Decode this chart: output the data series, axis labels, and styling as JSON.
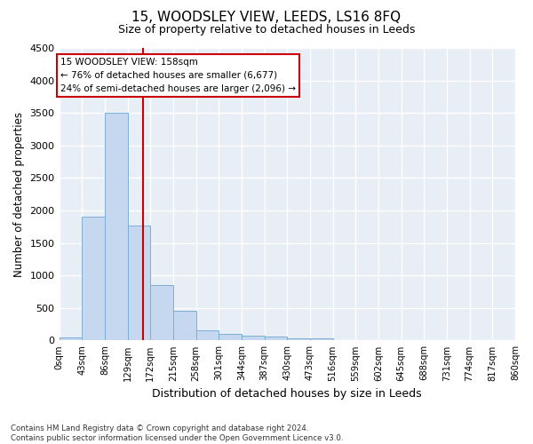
{
  "title": "15, WOODSLEY VIEW, LEEDS, LS16 8FQ",
  "subtitle": "Size of property relative to detached houses in Leeds",
  "xlabel": "Distribution of detached houses by size in Leeds",
  "ylabel": "Number of detached properties",
  "bin_labels": [
    "0sqm",
    "43sqm",
    "86sqm",
    "129sqm",
    "172sqm",
    "215sqm",
    "258sqm",
    "301sqm",
    "344sqm",
    "387sqm",
    "430sqm",
    "473sqm",
    "516sqm",
    "559sqm",
    "602sqm",
    "645sqm",
    "688sqm",
    "731sqm",
    "774sqm",
    "817sqm",
    "860sqm"
  ],
  "bin_edges_sqm": [
    0,
    43,
    86,
    129,
    172,
    215,
    258,
    301,
    344,
    387,
    430,
    473,
    516,
    559,
    602,
    645,
    688,
    731,
    774,
    817,
    860
  ],
  "bar_heights": [
    50,
    1900,
    3500,
    1770,
    850,
    460,
    160,
    100,
    70,
    55,
    40,
    30,
    0,
    0,
    0,
    0,
    0,
    0,
    0,
    0
  ],
  "bar_color": "#c5d8ef",
  "bar_edge_color": "#7bafd4",
  "background_color": "#e8eef6",
  "grid_color": "#ffffff",
  "property_size_sqm": 158,
  "vline_color": "#cc0000",
  "ylim": [
    0,
    4500
  ],
  "yticks": [
    0,
    500,
    1000,
    1500,
    2000,
    2500,
    3000,
    3500,
    4000,
    4500
  ],
  "annotation_title": "15 WOODSLEY VIEW: 158sqm",
  "annotation_line1": "← 76% of detached houses are smaller (6,677)",
  "annotation_line2": "24% of semi-detached houses are larger (2,096) →",
  "annotation_box_color": "#cc0000",
  "footer_line1": "Contains HM Land Registry data © Crown copyright and database right 2024.",
  "footer_line2": "Contains public sector information licensed under the Open Government Licence v3.0."
}
